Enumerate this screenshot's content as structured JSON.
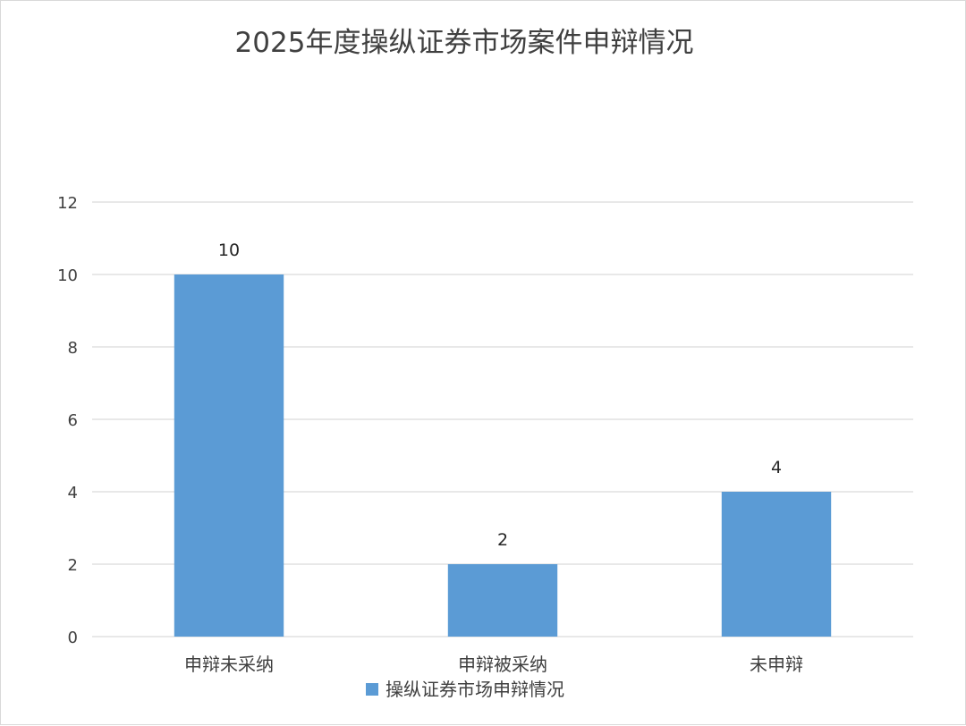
{
  "chart_data": {
    "type": "bar",
    "title": "2025年度操纵证券市场案件申辩情况",
    "categories": [
      "申辩未采纳",
      "申辩被采纳",
      "未申辩"
    ],
    "series": [
      {
        "name": "操纵证券市场申辩情况",
        "values": [
          10,
          2,
          4
        ],
        "color": "#5b9bd5"
      }
    ],
    "ylim": [
      0,
      12
    ],
    "yticks": [
      0,
      2,
      4,
      6,
      8,
      10,
      12
    ],
    "grid": true,
    "data_labels": true,
    "legend_position": "bottom"
  }
}
